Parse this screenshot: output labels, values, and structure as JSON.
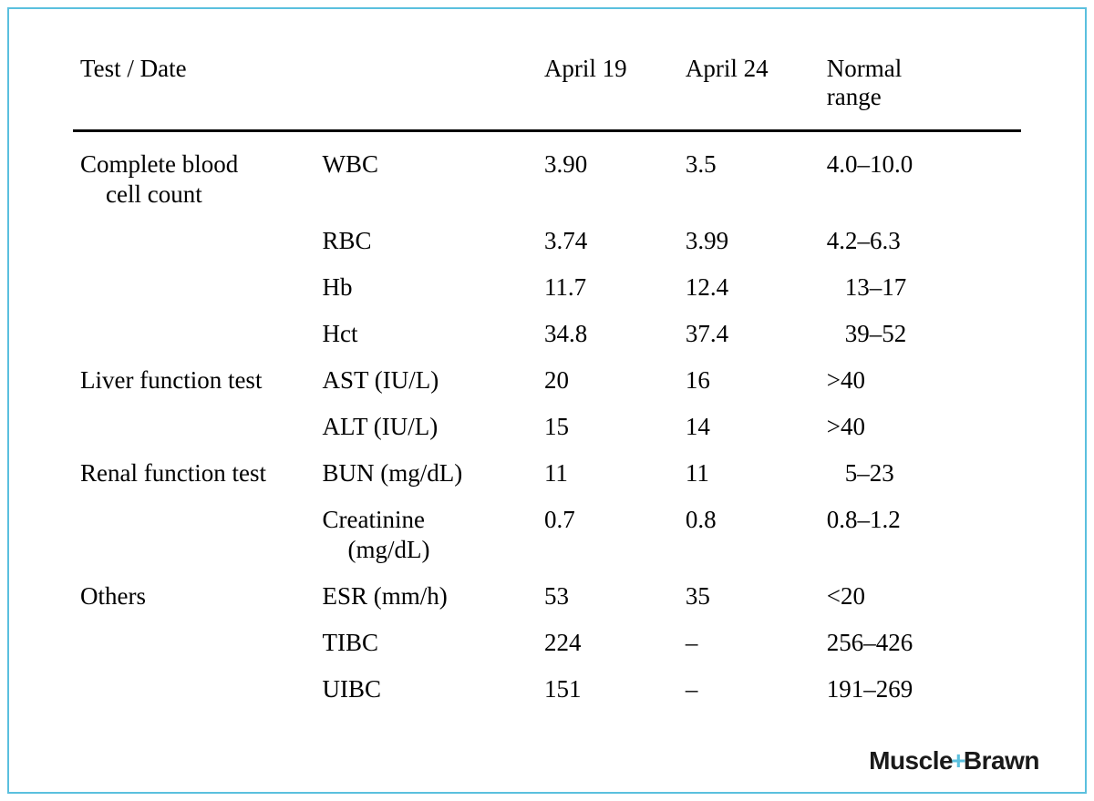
{
  "table": {
    "headers": {
      "col1": "Test / Date",
      "col2": "",
      "col3": "April 19",
      "col4": "April 24",
      "col5_line1": "Normal",
      "col5_line2": "range"
    },
    "groups": [
      {
        "category_line1": "Complete blood",
        "category_line2": "cell count",
        "rows": [
          {
            "test": "WBC",
            "date1": "3.90",
            "date2": "3.5",
            "range": "4.0–10.0",
            "range_indent": false
          },
          {
            "test": "RBC",
            "date1": "3.74",
            "date2": "3.99",
            "range": "4.2–6.3",
            "range_indent": false
          },
          {
            "test": "Hb",
            "date1": "11.7",
            "date2": "12.4",
            "range": "13–17",
            "range_indent": true
          },
          {
            "test": "Hct",
            "date1": "34.8",
            "date2": "37.4",
            "range": "39–52",
            "range_indent": true
          }
        ]
      },
      {
        "category_line1": "Liver function test",
        "category_line2": "",
        "rows": [
          {
            "test": "AST (IU/L)",
            "date1": "20",
            "date2": "16",
            "range": ">40",
            "range_indent": false
          },
          {
            "test": "ALT (IU/L)",
            "date1": "15",
            "date2": "14",
            "range": ">40",
            "range_indent": false
          }
        ]
      },
      {
        "category_line1": "Renal function test",
        "category_line2": "",
        "rows": [
          {
            "test": "BUN (mg/dL)",
            "date1": "11",
            "date2": "11",
            "range": "5–23",
            "range_indent": true
          },
          {
            "test_line1": "Creatinine",
            "test_line2": "(mg/dL)",
            "date1": "0.7",
            "date2": "0.8",
            "range": "0.8–1.2",
            "range_indent": false
          }
        ]
      },
      {
        "category_line1": "Others",
        "category_line2": "",
        "rows": [
          {
            "test": "ESR (mm/h)",
            "date1": "53",
            "date2": "35",
            "range": "<20",
            "range_indent": false
          },
          {
            "test": "TIBC",
            "date1": "224",
            "date2": "–",
            "range": "256–426",
            "range_indent": false
          },
          {
            "test": "UIBC",
            "date1": "151",
            "date2": "–",
            "range": "191–269",
            "range_indent": false
          }
        ]
      }
    ]
  },
  "logo": {
    "part1": "Muscle",
    "plus": "+",
    "part2": "Brawn"
  },
  "style": {
    "border_color": "#5bc0de",
    "header_rule_color": "#000000",
    "text_color": "#000000",
    "background_color": "#ffffff",
    "font_family": "Times New Roman",
    "font_size_pt": 20,
    "logo_font_family": "Arial",
    "logo_color": "#1a1a1a",
    "logo_plus_color": "#5bc0de"
  }
}
